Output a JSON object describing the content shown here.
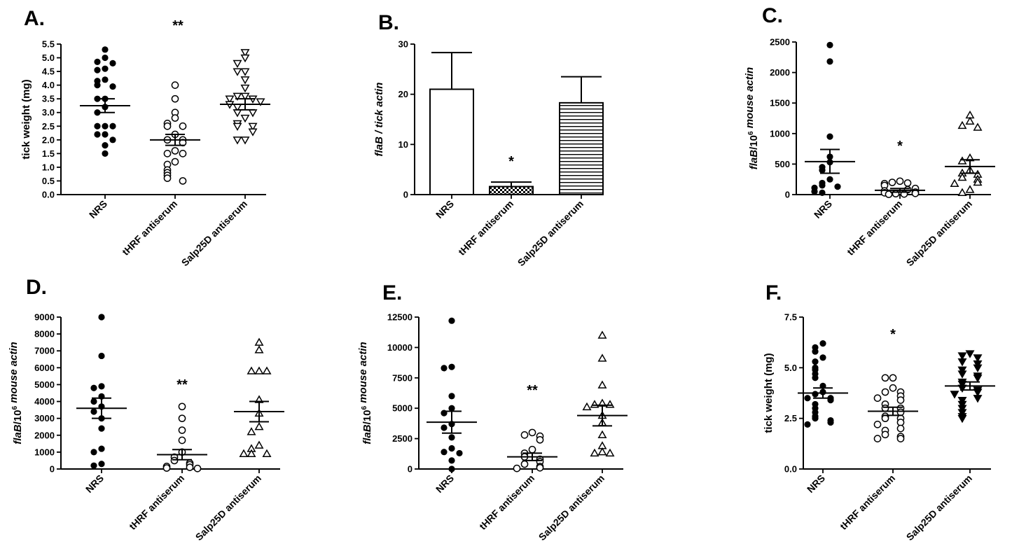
{
  "chart_data": [
    {
      "panel": "A.",
      "type": "scatter",
      "marker": "filled-circle|open-circle|open-triangle-down",
      "categories": [
        "NRS",
        "tHRF antiserum",
        "Salp25D antiserum"
      ],
      "ylabel_parts": [
        {
          "t": "tick weight (mg)"
        }
      ],
      "ylim": [
        0,
        5.5
      ],
      "yticks": [
        "0.0",
        "0.5",
        "1.0",
        "1.5",
        "2.0",
        "2.5",
        "3.0",
        "3.5",
        "4.0",
        "4.5",
        "5.0",
        "5.5"
      ],
      "significance": [
        {
          "category": "tHRF antiserum",
          "label": "**"
        }
      ],
      "series": [
        {
          "category": "NRS",
          "mean": 3.25,
          "sem_low": 3.0,
          "sem_high": 3.5,
          "values": [
            5.3,
            5.0,
            4.85,
            4.8,
            4.6,
            4.55,
            4.2,
            4.15,
            4.0,
            3.95,
            3.5,
            3.5,
            3.2,
            3.0,
            2.5,
            2.5,
            2.5,
            2.2,
            2.2,
            2.0,
            1.8,
            1.5
          ]
        },
        {
          "category": "tHRF antiserum",
          "mean": 2.0,
          "sem_low": 1.8,
          "sem_high": 2.2,
          "values": [
            4.0,
            3.5,
            3.0,
            2.8,
            2.6,
            2.5,
            2.5,
            2.2,
            2.0,
            2.0,
            1.9,
            1.6,
            1.5,
            1.5,
            1.2,
            1.1,
            0.9,
            0.8,
            0.7,
            0.6,
            0.5
          ]
        },
        {
          "category": "Salp25D antiserum",
          "mean": 3.3,
          "sem_low": 3.1,
          "sem_high": 3.5,
          "values": [
            5.2,
            5.0,
            4.8,
            4.5,
            4.5,
            4.2,
            3.9,
            3.6,
            3.6,
            3.5,
            3.5,
            3.4,
            3.3,
            3.2,
            3.0,
            3.0,
            2.8,
            2.6,
            2.5,
            2.5,
            2.3,
            2.0,
            2.0
          ]
        }
      ]
    },
    {
      "panel": "B.",
      "type": "bar",
      "categories": [
        "NRS",
        "tHRF antiserum",
        "Salp25D antiserum"
      ],
      "ylabel_parts": [
        {
          "t": "flaB / tick actin",
          "i": true
        }
      ],
      "ylim": [
        0,
        30
      ],
      "yticks": [
        "0",
        "10",
        "20",
        "30"
      ],
      "significance": [
        {
          "category": "tHRF antiserum",
          "label": "*"
        }
      ],
      "series": [
        {
          "category": "NRS",
          "value": 21.0,
          "error": 28.3,
          "fill": "empty"
        },
        {
          "category": "tHRF antiserum",
          "value": 1.6,
          "error": 2.5,
          "fill": "checker"
        },
        {
          "category": "Salp25D antiserum",
          "value": 18.3,
          "error": 23.5,
          "fill": "horizontal-lines"
        }
      ]
    },
    {
      "panel": "C.",
      "type": "scatter",
      "marker": "filled-circle|open-circle|open-triangle-up",
      "categories": [
        "NRS",
        "tHRF antiserum",
        "Salp25D antiserum"
      ],
      "ylabel_parts": [
        {
          "t": "flaB",
          "i": true
        },
        {
          "t": "/10"
        },
        {
          "t": "6",
          "sup": true
        },
        {
          "t": " mouse actin",
          "i": true
        }
      ],
      "ylim": [
        0,
        2500
      ],
      "yticks": [
        "0",
        "500",
        "1000",
        "1500",
        "2000",
        "2500"
      ],
      "significance": [
        {
          "category": "tHRF antiserum",
          "label": "*"
        }
      ],
      "series": [
        {
          "category": "NRS",
          "mean": 540,
          "sem_low": 350,
          "sem_high": 740,
          "values": [
            2450,
            2180,
            950,
            620,
            530,
            450,
            400,
            250,
            190,
            150,
            130,
            110,
            50,
            30
          ]
        },
        {
          "category": "tHRF antiserum",
          "mean": 70,
          "sem_low": 40,
          "sem_high": 100,
          "values": [
            220,
            200,
            190,
            180,
            150,
            100,
            80,
            60,
            40,
            30,
            20,
            15,
            10,
            5
          ]
        },
        {
          "category": "Salp25D antiserum",
          "mean": 460,
          "sem_low": 350,
          "sem_high": 570,
          "values": [
            1300,
            1200,
            1130,
            1100,
            600,
            550,
            400,
            350,
            330,
            280,
            250,
            200,
            180,
            80,
            30
          ]
        }
      ]
    },
    {
      "panel": "D.",
      "type": "scatter",
      "marker": "filled-circle|open-circle|open-triangle-up",
      "categories": [
        "NRS",
        "tHRF antiserum",
        "Salp25D antiserum"
      ],
      "ylabel_parts": [
        {
          "t": "flaB",
          "i": true
        },
        {
          "t": "/10"
        },
        {
          "t": "6",
          "sup": true
        },
        {
          "t": " mouse actin",
          "i": true
        }
      ],
      "ylim": [
        0,
        9000
      ],
      "yticks": [
        "0",
        "1000",
        "2000",
        "3000",
        "4000",
        "5000",
        "6000",
        "7000",
        "8000",
        "9000"
      ],
      "significance": [
        {
          "category": "tHRF antiserum",
          "label": "**"
        }
      ],
      "series": [
        {
          "category": "NRS",
          "mean": 3600,
          "sem_low": 3000,
          "sem_high": 4200,
          "values": [
            9000,
            6700,
            4900,
            4800,
            4300,
            4000,
            3700,
            3400,
            3000,
            2400,
            1200,
            1000,
            300,
            200
          ]
        },
        {
          "category": "tHRF antiserum",
          "mean": 850,
          "sem_low": 550,
          "sem_high": 1150,
          "values": [
            3700,
            3000,
            2300,
            1700,
            1000,
            700,
            500,
            350,
            250,
            150,
            100,
            60,
            30
          ]
        },
        {
          "category": "Salp25D antiserum",
          "mean": 3400,
          "sem_low": 2800,
          "sem_high": 4000,
          "values": [
            7500,
            7050,
            5800,
            5800,
            5800,
            4100,
            3300,
            2500,
            2200,
            1400,
            1200,
            900,
            900,
            900
          ]
        }
      ]
    },
    {
      "panel": "E.",
      "type": "scatter",
      "marker": "filled-circle|open-circle|open-triangle-up",
      "categories": [
        "NRS",
        "tHRF antiserum",
        "Salp25D antiserum"
      ],
      "ylabel_parts": [
        {
          "t": "flaB",
          "i": true
        },
        {
          "t": "/10"
        },
        {
          "t": "6",
          "sup": true
        },
        {
          "t": " mouse actin",
          "i": true
        }
      ],
      "ylim": [
        0,
        12500
      ],
      "yticks": [
        "0",
        "2500",
        "5000",
        "7500",
        "10000",
        "12500"
      ],
      "significance": [
        {
          "category": "tHRF antiserum",
          "label": "**"
        }
      ],
      "series": [
        {
          "category": "NRS",
          "mean": 3850,
          "sem_low": 2950,
          "sem_high": 4750,
          "values": [
            12200,
            8400,
            8300,
            6000,
            5000,
            4600,
            3700,
            3400,
            2600,
            1700,
            1400,
            1300,
            700,
            0
          ]
        },
        {
          "category": "tHRF antiserum",
          "mean": 1000,
          "sem_low": 700,
          "sem_high": 1300,
          "values": [
            3000,
            2800,
            2700,
            2400,
            1600,
            1300,
            1000,
            800,
            600,
            400,
            200,
            100,
            50
          ]
        },
        {
          "category": "Salp25D antiserum",
          "mean": 4400,
          "sem_low": 3550,
          "sem_high": 5250,
          "values": [
            11000,
            9100,
            6900,
            5400,
            5300,
            5300,
            5100,
            4400,
            3800,
            2800,
            1900,
            1400,
            1300,
            1300
          ]
        }
      ]
    },
    {
      "panel": "F.",
      "type": "scatter",
      "marker": "filled-circle|open-circle|filled-triangle-down",
      "categories": [
        "NRS",
        "tHRF antiserum",
        "Salp25D antiserum"
      ],
      "ylabel_parts": [
        {
          "t": "tick weight (mg)"
        }
      ],
      "ylim": [
        0,
        7.5
      ],
      "yticks": [
        "0.0",
        "2.5",
        "5.0",
        "7.5"
      ],
      "significance": [
        {
          "category": "tHRF antiserum",
          "label": "*"
        }
      ],
      "series": [
        {
          "category": "NRS",
          "mean": 3.75,
          "sem_low": 3.5,
          "sem_high": 4.0,
          "values": [
            6.2,
            6.0,
            5.8,
            5.5,
            5.3,
            5.0,
            4.9,
            4.7,
            4.5,
            4.1,
            3.8,
            3.7,
            3.5,
            3.5,
            3.4,
            3.2,
            3.0,
            2.8,
            2.6,
            2.5,
            2.4,
            2.3,
            2.2
          ]
        },
        {
          "category": "tHRF antiserum",
          "mean": 2.85,
          "sem_low": 2.65,
          "sem_high": 3.05,
          "values": [
            4.5,
            4.5,
            4.0,
            3.8,
            3.8,
            3.6,
            3.5,
            3.4,
            3.2,
            3.0,
            3.0,
            2.8,
            2.6,
            2.5,
            2.5,
            2.3,
            2.2,
            2.0,
            1.9,
            1.7,
            1.6,
            1.5,
            1.5
          ]
        },
        {
          "category": "Salp25D antiserum",
          "mean": 4.1,
          "sem_low": 3.9,
          "sem_high": 4.3,
          "values": [
            5.7,
            5.6,
            5.5,
            5.3,
            5.2,
            5.0,
            4.9,
            4.7,
            4.6,
            4.5,
            4.3,
            4.2,
            4.0,
            3.9,
            3.8,
            3.7,
            3.5,
            3.4,
            3.2,
            3.0,
            2.8,
            2.6,
            2.5
          ]
        }
      ]
    }
  ]
}
